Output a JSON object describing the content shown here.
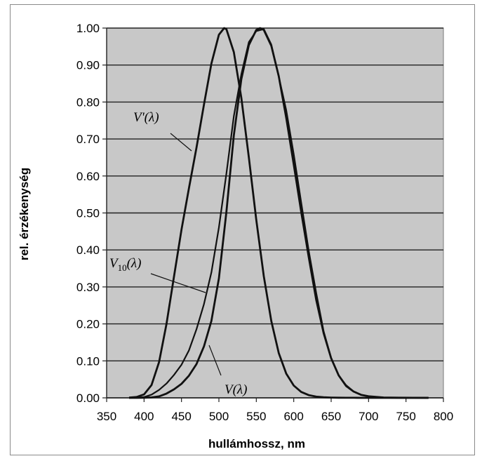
{
  "chart_data": {
    "type": "line",
    "xlabel": "hullámhossz, nm",
    "ylabel": "rel. érzékenység",
    "xlim": [
      350,
      800
    ],
    "ylim": [
      0,
      1
    ],
    "x_ticks": [
      "350",
      "400",
      "450",
      "500",
      "550",
      "600",
      "650",
      "700",
      "750",
      "800"
    ],
    "y_ticks": [
      "0.00",
      "0.10",
      "0.20",
      "0.30",
      "0.40",
      "0.50",
      "0.60",
      "0.70",
      "0.80",
      "0.90",
      "1.00"
    ],
    "grid": true,
    "plot_background": "#c8c8c8",
    "line_color": "#111111",
    "annotations": [
      "V'(λ)",
      "V10(λ)",
      "V(λ)"
    ],
    "series": [
      {
        "x": [
          380,
          390,
          400,
          410,
          420,
          430,
          440,
          450,
          460,
          470,
          480,
          490,
          500,
          507,
          510,
          520,
          530,
          540,
          550,
          560,
          570,
          580,
          590,
          600,
          610,
          620,
          630,
          640,
          650,
          660,
          670,
          680,
          690,
          700,
          720,
          740,
          760,
          780
        ],
        "values": [
          0.0006,
          0.0022,
          0.0093,
          0.0348,
          0.0966,
          0.1998,
          0.3281,
          0.455,
          0.567,
          0.676,
          0.793,
          0.904,
          0.982,
          1.0,
          0.997,
          0.935,
          0.811,
          0.65,
          0.481,
          0.3288,
          0.2076,
          0.1212,
          0.0655,
          0.0332,
          0.0159,
          0.0074,
          0.0033,
          0.0015,
          0.0007,
          0.0003,
          0.0001,
          0.0001,
          0.0,
          0.0,
          0.0,
          0.0,
          0.0,
          0.0
        ]
      },
      {
        "x": [
          380,
          390,
          400,
          410,
          420,
          430,
          440,
          450,
          460,
          470,
          480,
          490,
          500,
          510,
          520,
          530,
          540,
          550,
          555,
          560,
          570,
          580,
          590,
          600,
          610,
          620,
          630,
          640,
          650,
          660,
          670,
          680,
          690,
          700,
          720,
          740,
          760,
          780
        ],
        "values": [
          0.0,
          0.0,
          0.0004,
          0.0012,
          0.004,
          0.0116,
          0.023,
          0.038,
          0.06,
          0.091,
          0.139,
          0.208,
          0.323,
          0.503,
          0.71,
          0.862,
          0.954,
          0.995,
          1.0,
          0.995,
          0.952,
          0.87,
          0.757,
          0.631,
          0.503,
          0.381,
          0.265,
          0.175,
          0.107,
          0.061,
          0.032,
          0.017,
          0.0082,
          0.0041,
          0.001,
          0.0003,
          0.0001,
          0.0
        ]
      },
      {
        "x": [
          380,
          390,
          400,
          410,
          420,
          430,
          440,
          450,
          460,
          470,
          480,
          490,
          500,
          510,
          520,
          530,
          540,
          550,
          560,
          570,
          580,
          590,
          600,
          610,
          620,
          630,
          640,
          650,
          660,
          670,
          680,
          690,
          700,
          720,
          740,
          760,
          780
        ],
        "values": [
          0.0,
          0.0003,
          0.002,
          0.0088,
          0.0214,
          0.0387,
          0.0621,
          0.0895,
          0.1282,
          0.1852,
          0.2536,
          0.3391,
          0.4608,
          0.6067,
          0.7618,
          0.8752,
          0.962,
          0.9918,
          0.9973,
          0.9555,
          0.8689,
          0.7774,
          0.6583,
          0.528,
          0.3981,
          0.2835,
          0.1798,
          0.1076,
          0.0603,
          0.0341,
          0.0173,
          0.0083,
          0.0041,
          0.001,
          0.0003,
          0.0001,
          0.0
        ]
      }
    ]
  }
}
